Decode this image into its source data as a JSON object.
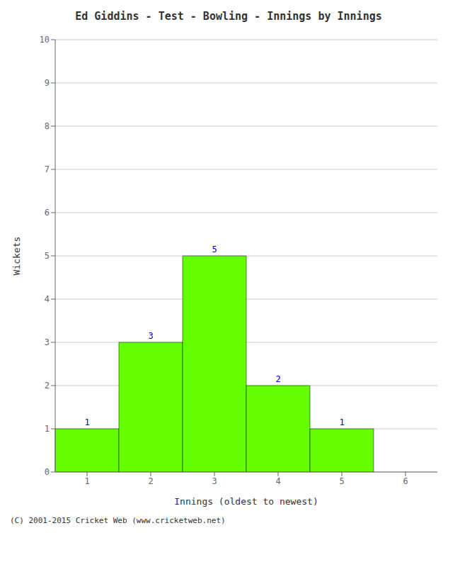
{
  "chart_data": {
    "type": "bar",
    "title": "Ed Giddins - Test - Bowling - Innings by Innings",
    "xlabel": "Innings (oldest to newest)",
    "ylabel": "Wickets",
    "categories": [
      1,
      2,
      3,
      4,
      5,
      6
    ],
    "values": [
      1,
      3,
      5,
      2,
      1,
      0
    ],
    "color": "#66ff00",
    "ylim": [
      0,
      10
    ],
    "yticks": [
      0,
      1,
      2,
      3,
      4,
      5,
      6,
      7,
      8,
      9,
      10
    ],
    "grid": true,
    "data_labels": true,
    "annotations": [
      "(C) 2001-2015 Cricket Web (www.cricketweb.net)"
    ]
  }
}
